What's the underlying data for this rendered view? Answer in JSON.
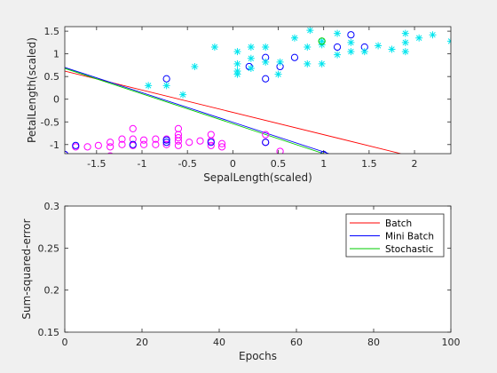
{
  "chart_data": [
    {
      "type": "scatter",
      "xlabel": "SepalLength(scaled)",
      "ylabel": "PetalLength(scaled)",
      "xlim": [
        -1.85,
        2.4
      ],
      "ylim": [
        -1.2,
        1.6
      ],
      "xticks": [
        -1.5,
        -1,
        -0.5,
        0,
        0.5,
        1,
        1.5,
        2
      ],
      "xtick_labels": [
        "-1.5",
        "-1",
        "-0.5",
        "0",
        "0.5",
        "1",
        "1.5",
        "2"
      ],
      "yticks": [
        -1,
        -0.5,
        0,
        0.5,
        1,
        1.5
      ],
      "ytick_labels": [
        "-1",
        "-0.5",
        "0",
        "0.5",
        "1",
        "1.5"
      ],
      "grid": false,
      "series": [
        {
          "marker": "circle",
          "color": "#ff00ff",
          "points": [
            [
              -1.85,
              -1.22
            ],
            [
              -1.73,
              -1.05
            ],
            [
              -1.6,
              -1.05
            ],
            [
              -1.48,
              -1.02
            ],
            [
              -1.35,
              -1.05
            ],
            [
              -1.35,
              -0.95
            ],
            [
              -1.35,
              -1.25
            ],
            [
              -1.22,
              -1.0
            ],
            [
              -1.22,
              -0.88
            ],
            [
              -1.1,
              -1.02
            ],
            [
              -1.1,
              -0.88
            ],
            [
              -1.1,
              -0.65
            ],
            [
              -0.98,
              -1.0
            ],
            [
              -0.98,
              -0.9
            ],
            [
              -0.85,
              -1.0
            ],
            [
              -0.85,
              -0.88
            ],
            [
              -0.73,
              -1.0
            ],
            [
              -0.73,
              -0.88
            ],
            [
              -0.6,
              -1.02
            ],
            [
              -0.6,
              -0.92
            ],
            [
              -0.6,
              -0.85
            ],
            [
              -0.6,
              -0.78
            ],
            [
              -0.6,
              -0.65
            ],
            [
              -0.48,
              -0.95
            ],
            [
              -0.36,
              -0.92
            ],
            [
              -0.24,
              -1.02
            ],
            [
              -0.24,
              -0.92
            ],
            [
              -0.24,
              -0.78
            ],
            [
              -0.12,
              -0.98
            ],
            [
              -0.12,
              -1.05
            ],
            [
              0.36,
              -0.78
            ],
            [
              0.36,
              -0.95
            ],
            [
              0.52,
              -1.15
            ]
          ]
        },
        {
          "marker": "circle",
          "color": "#0000ff",
          "points": [
            [
              -1.85,
              -1.22
            ],
            [
              -1.73,
              -1.02
            ],
            [
              -1.1,
              -1.0
            ],
            [
              -0.73,
              -0.9
            ],
            [
              -0.73,
              -0.95
            ],
            [
              -0.24,
              -0.95
            ],
            [
              0.36,
              -0.95
            ],
            [
              1.0,
              -1.22
            ],
            [
              -0.73,
              0.45
            ],
            [
              0.18,
              0.72
            ],
            [
              0.36,
              0.92
            ],
            [
              0.36,
              0.45
            ],
            [
              0.52,
              0.72
            ],
            [
              0.68,
              0.92
            ],
            [
              1.15,
              1.15
            ],
            [
              1.3,
              1.42
            ],
            [
              1.45,
              1.15
            ]
          ]
        },
        {
          "marker": "star",
          "color": "#00e5ee",
          "points": [
            [
              -0.93,
              0.3
            ],
            [
              -0.73,
              0.3
            ],
            [
              -0.55,
              0.1
            ],
            [
              -0.42,
              0.72
            ],
            [
              -0.2,
              1.15
            ],
            [
              0.05,
              0.78
            ],
            [
              0.05,
              1.05
            ],
            [
              0.05,
              0.62
            ],
            [
              0.05,
              0.55
            ],
            [
              0.2,
              0.68
            ],
            [
              0.2,
              0.9
            ],
            [
              0.2,
              1.15
            ],
            [
              0.36,
              0.82
            ],
            [
              0.36,
              1.15
            ],
            [
              0.5,
              0.55
            ],
            [
              0.52,
              0.82
            ],
            [
              0.68,
              1.35
            ],
            [
              0.82,
              0.78
            ],
            [
              0.82,
              1.15
            ],
            [
              0.85,
              1.52
            ],
            [
              0.98,
              0.78
            ],
            [
              0.98,
              1.2
            ],
            [
              0.98,
              1.28
            ],
            [
              1.15,
              0.98
            ],
            [
              1.15,
              1.45
            ],
            [
              1.3,
              1.05
            ],
            [
              1.3,
              1.25
            ],
            [
              1.45,
              1.05
            ],
            [
              1.6,
              1.18
            ],
            [
              1.75,
              1.1
            ],
            [
              1.9,
              1.05
            ],
            [
              1.9,
              1.25
            ],
            [
              1.9,
              1.45
            ],
            [
              2.05,
              1.35
            ],
            [
              2.2,
              1.42
            ],
            [
              2.4,
              1.28
            ]
          ]
        },
        {
          "marker": "circle",
          "color": "#00cc00",
          "points": [
            [
              0.98,
              1.28
            ]
          ]
        }
      ],
      "lines": [
        {
          "name": "Batch",
          "color": "#ff0000",
          "points": [
            [
              -1.85,
              0.62
            ],
            [
              1.85,
              -1.2
            ]
          ]
        },
        {
          "name": "Mini Batch",
          "color": "#0000ff",
          "points": [
            [
              -1.85,
              0.7
            ],
            [
              1.06,
              -1.2
            ]
          ]
        },
        {
          "name": "Stochastic",
          "color": "#00cc00",
          "points": [
            [
              -1.85,
              0.68
            ],
            [
              1.0,
              -1.2
            ]
          ]
        }
      ]
    },
    {
      "type": "line",
      "xlabel": "Epochs",
      "ylabel": "Sum-squared-error",
      "xlim": [
        0,
        100
      ],
      "ylim": [
        0.15,
        0.3
      ],
      "xticks": [
        0,
        20,
        40,
        60,
        80,
        100
      ],
      "xtick_labels": [
        "0",
        "20",
        "40",
        "60",
        "80",
        "100"
      ],
      "yticks": [
        0.15,
        0.2,
        0.25,
        0.3
      ],
      "ytick_labels": [
        "0.15",
        "0.2",
        "0.25",
        "0.3"
      ],
      "grid": false,
      "legend_position": "top-right",
      "series": [
        {
          "name": "Batch",
          "color": "#ff0000",
          "x": [],
          "y": []
        },
        {
          "name": "Mini Batch",
          "color": "#0000ff",
          "x": [],
          "y": []
        },
        {
          "name": "Stochastic",
          "color": "#00cc00",
          "x": [],
          "y": []
        }
      ]
    }
  ]
}
